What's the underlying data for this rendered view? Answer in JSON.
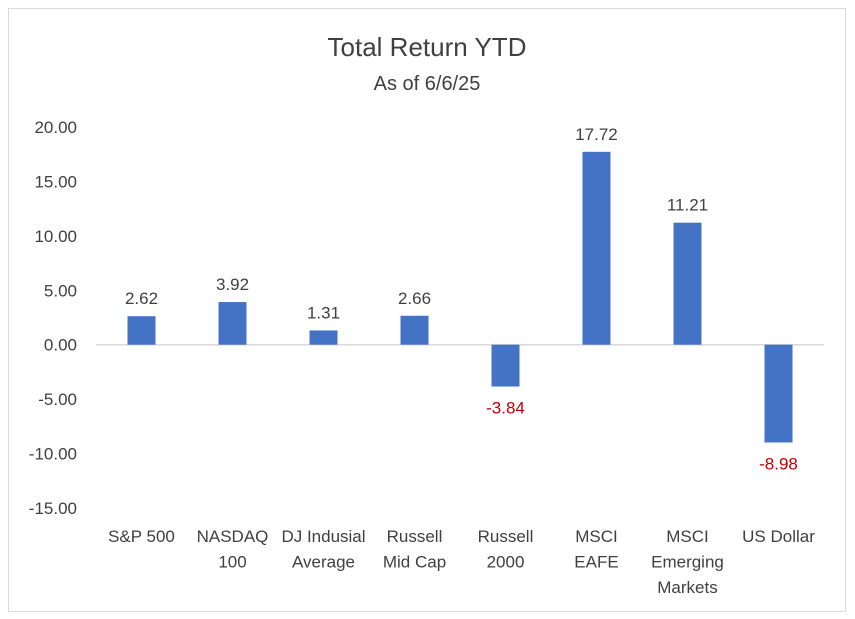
{
  "chart_data": {
    "type": "bar",
    "title": "Total Return YTD",
    "subtitle": "As of 6/6/25",
    "categories": [
      [
        "S&P 500"
      ],
      [
        "NASDAQ",
        "100"
      ],
      [
        "DJ Indusial",
        "Average"
      ],
      [
        "Russell",
        "Mid Cap"
      ],
      [
        "Russell",
        "2000"
      ],
      [
        "MSCI",
        "EAFE"
      ],
      [
        "MSCI",
        "Emerging",
        "Markets"
      ],
      [
        "US Dollar"
      ]
    ],
    "values": [
      2.62,
      3.92,
      1.31,
      2.66,
      -3.84,
      17.72,
      11.21,
      -8.98
    ],
    "data_labels": [
      "2.62",
      "3.92",
      "1.31",
      "2.66",
      "-3.84",
      "17.72",
      "11.21",
      "-8.98"
    ],
    "y_ticks": [
      "20.00",
      "15.00",
      "10.00",
      "5.00",
      "0.00",
      "-5.00",
      "-10.00",
      "-15.00"
    ],
    "ylim": [
      -15,
      20
    ],
    "grid": false,
    "colors": {
      "bar": "#4472C4",
      "negative_label": "#C00000",
      "text": "#404040",
      "axis": "#d9d9d9"
    }
  }
}
